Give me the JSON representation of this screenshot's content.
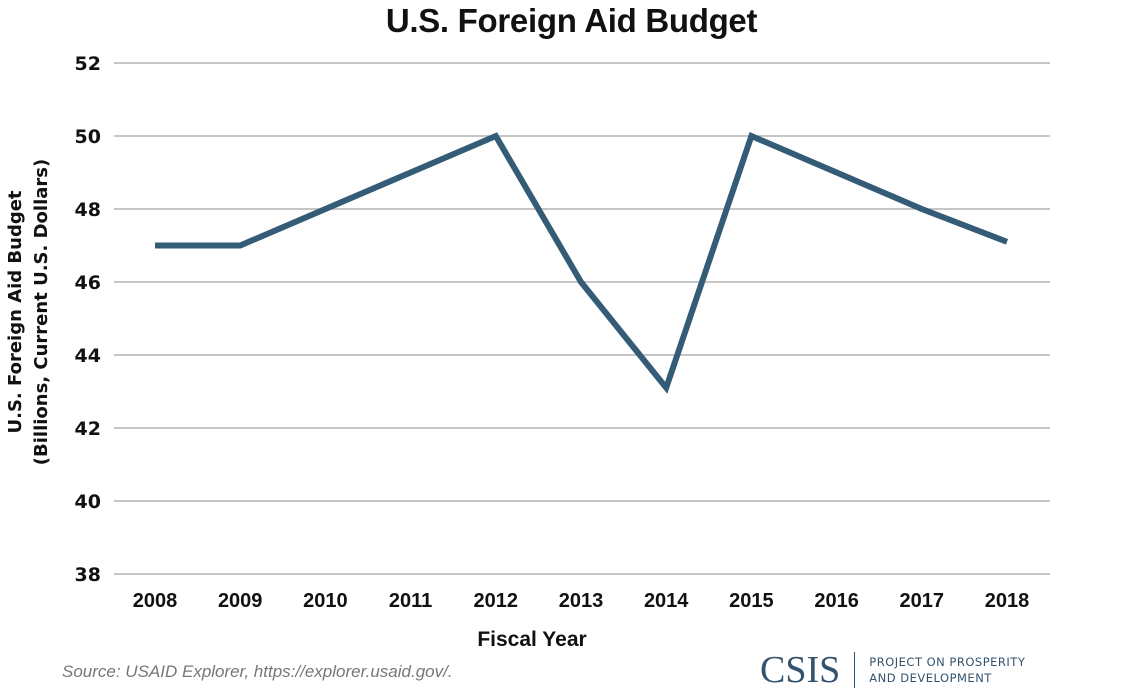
{
  "chart_data": {
    "type": "line",
    "title": "U.S. Foreign Aid Budget",
    "xlabel": "Fiscal Year",
    "ylabel": [
      "U.S. Foreign Aid Budget",
      "(Billions, Current U.S. Dollars)"
    ],
    "x_tick_labels": [
      "2008",
      "2009",
      "2010",
      "2011",
      "2012",
      "2013",
      "2014",
      "2015",
      "2016",
      "2017",
      "2018"
    ],
    "y_tick_labels": [
      "52",
      "50",
      "48",
      "46",
      "44",
      "42",
      "40",
      "38"
    ],
    "ylim": [
      38,
      52
    ],
    "xlim": [
      2008,
      2018
    ],
    "grid": "horizontal",
    "legend": "none",
    "series": [
      {
        "name": "U.S. Foreign Aid Budget",
        "color": "#355c77",
        "points": [
          {
            "x": 2008,
            "y": 47
          },
          {
            "x": 2009,
            "y": 47
          },
          {
            "x": 2010,
            "y": 48
          },
          {
            "x": 2011,
            "y": 49
          },
          {
            "x": 2012,
            "y": 50
          },
          {
            "x": 2012.5,
            "y": 48
          },
          {
            "x": 2013,
            "y": 46
          },
          {
            "x": 2014,
            "y": 43.1
          },
          {
            "x": 2015,
            "y": 50
          },
          {
            "x": 2016,
            "y": 49
          },
          {
            "x": 2017,
            "y": 48
          },
          {
            "x": 2018,
            "y": 47.1
          }
        ]
      }
    ]
  },
  "footer": {
    "source": "Source: USAID Explorer, https://explorer.usaid.gov/.",
    "logo_mark": "CSIS",
    "logo_line1": "PROJECT ON PROSPERITY",
    "logo_line2": "AND DEVELOPMENT"
  },
  "colors": {
    "line": "#355c77",
    "grid": "#b3b3b3",
    "brand": "#34536e"
  }
}
